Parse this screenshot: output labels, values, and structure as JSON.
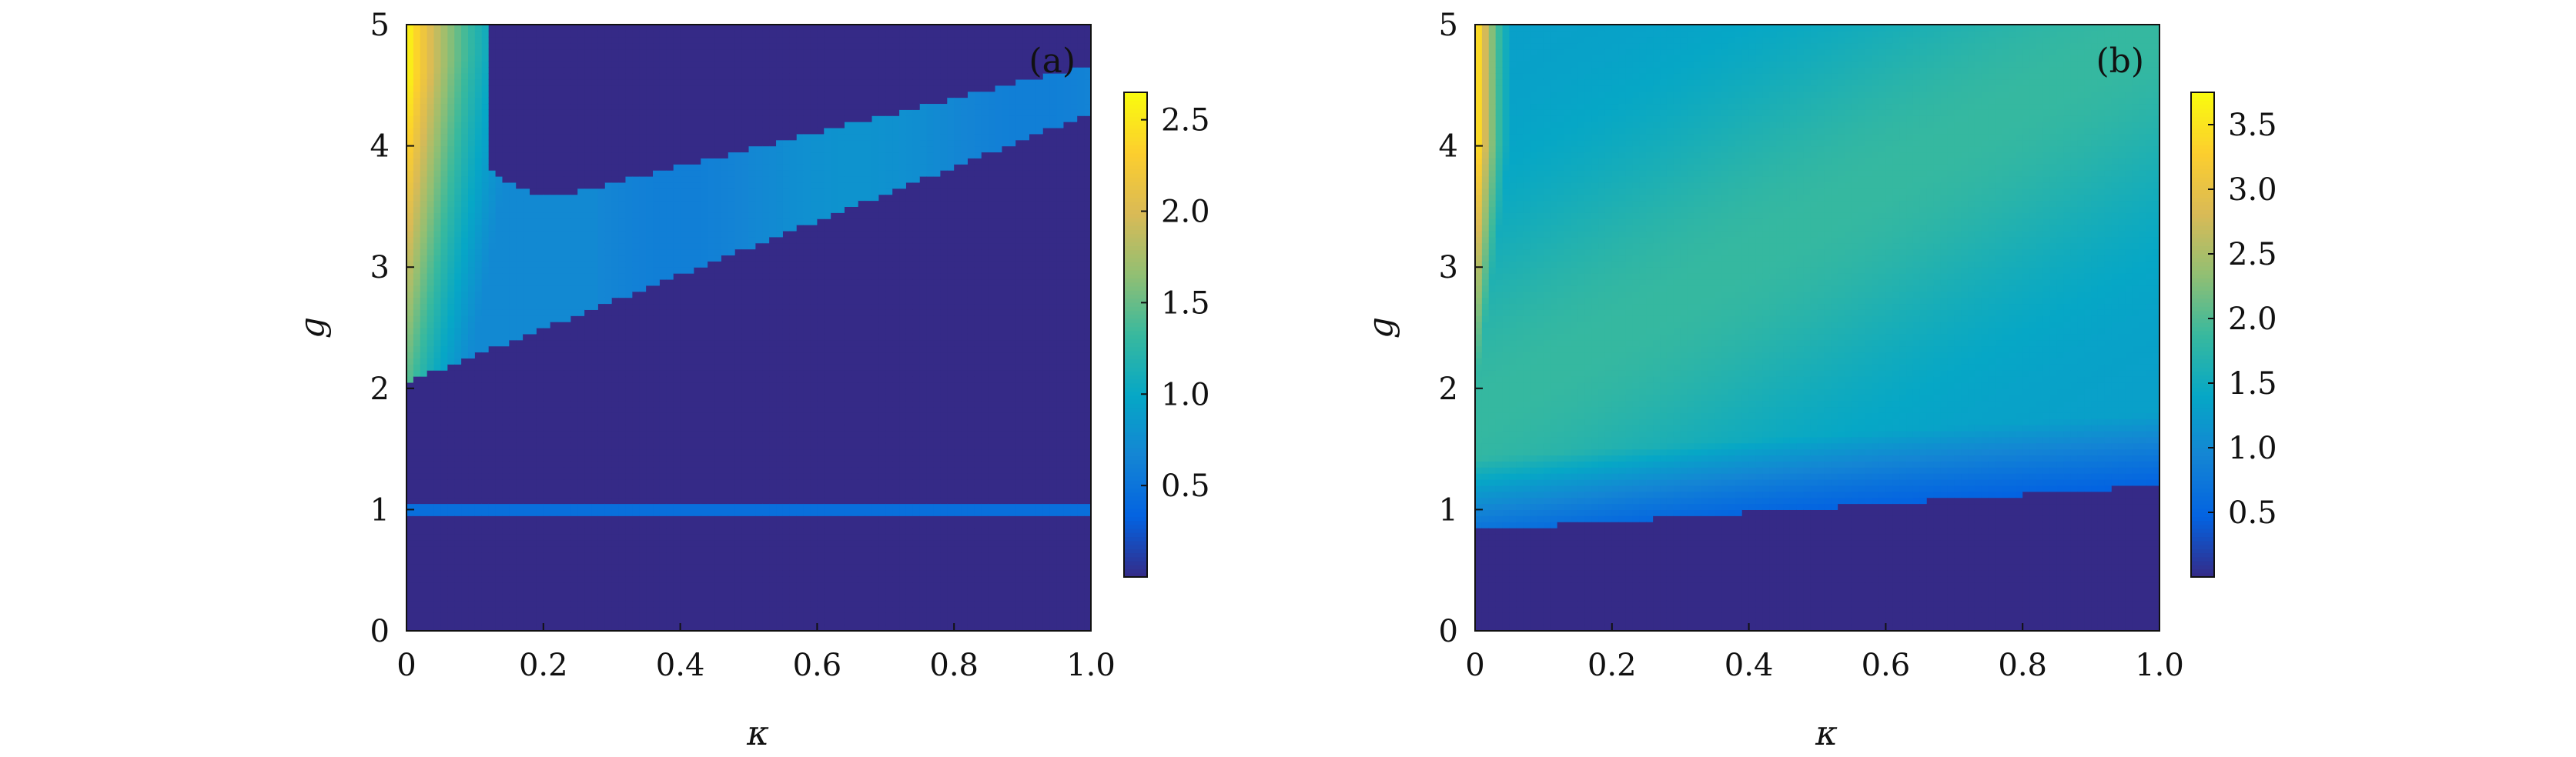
{
  "chart_data": [
    {
      "type": "heatmap",
      "panel_label": "(a)",
      "xlabel": "κ",
      "ylabel": "g",
      "xlim": [
        0,
        1.0
      ],
      "ylim": [
        0,
        5
      ],
      "x_ticks": [
        "0",
        "0.2",
        "0.4",
        "0.6",
        "0.8",
        "1.0"
      ],
      "y_ticks": [
        "0",
        "1",
        "2",
        "3",
        "4",
        "5"
      ],
      "colorbar": {
        "min": 0,
        "max": 2.65,
        "ticks": [
          "0.5",
          "1.0",
          "1.5",
          "2.0",
          "2.5"
        ]
      },
      "colormap": [
        "#352a87",
        "#0363e1",
        "#1485d4",
        "#06a7c6",
        "#38b99e",
        "#92bf73",
        "#d9ba56",
        "#fcce2e",
        "#f9fb0e"
      ],
      "regions": {
        "background_value": 0,
        "top_left_peak_value": 2.65,
        "horizontal_band": {
          "g": 1.0,
          "value": 0.45
        },
        "diagonal_band": {
          "lower_edge_g_at_kappa0": 2.05,
          "lower_edge_g_at_kappa1": 4.27,
          "top_edge_g_at_kappa1": 4.98,
          "value": 0.7
        },
        "upper_dark_region": {
          "vertex_kappa": 0.22,
          "vertex_g": 3.58
        }
      }
    },
    {
      "type": "heatmap",
      "panel_label": "(b)",
      "xlabel": "κ",
      "ylabel": "g",
      "xlim": [
        0,
        1.0
      ],
      "ylim": [
        0,
        5
      ],
      "x_ticks": [
        "0",
        "0.2",
        "0.4",
        "0.6",
        "0.8",
        "1.0"
      ],
      "y_ticks": [
        "0",
        "1",
        "2",
        "3",
        "4",
        "5"
      ],
      "colorbar": {
        "min": 0,
        "max": 3.75,
        "ticks": [
          "0.5",
          "1.0",
          "1.5",
          "2.0",
          "2.5",
          "3.0",
          "3.5"
        ]
      },
      "colormap": [
        "#352a87",
        "#0363e1",
        "#1485d4",
        "#06a7c6",
        "#38b99e",
        "#92bf73",
        "#d9ba56",
        "#fcce2e",
        "#f9fb0e"
      ],
      "regions": {
        "boundary_g_at_kappa0": 0.83,
        "boundary_g_at_kappa1": 1.2,
        "below_boundary_value": 0,
        "left_edge_peak_value": 3.75,
        "bulk_value": 1.3
      }
    }
  ]
}
